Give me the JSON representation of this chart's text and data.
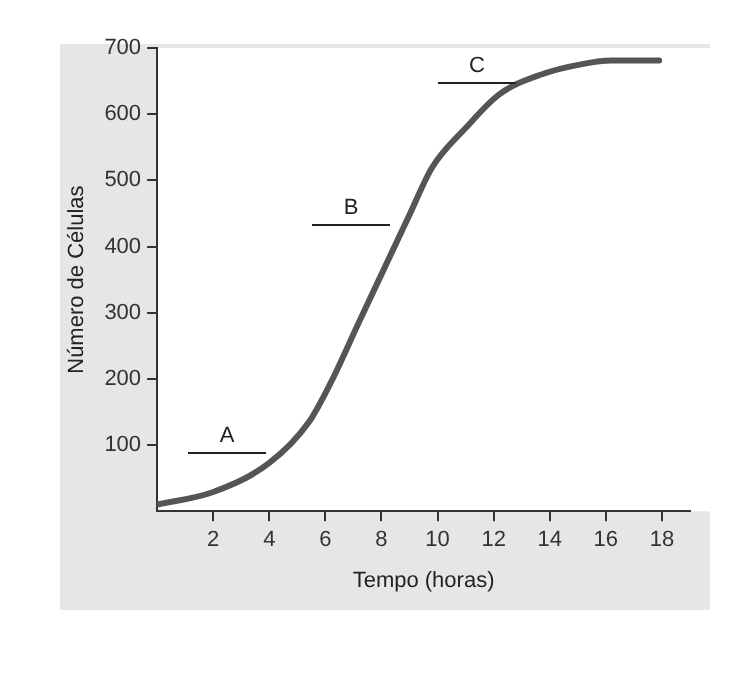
{
  "chart_data": {
    "type": "line",
    "xlabel": "Tempo (horas)",
    "ylabel": "Número de Células",
    "x": [
      0,
      2,
      4,
      5.4,
      6.2,
      7.2,
      8.1,
      9,
      9.8,
      11,
      12.2,
      13.7,
      15.2,
      16.2,
      17.9
    ],
    "series": [
      {
        "color": "#555555",
        "values": [
          10,
          29,
          73,
          134,
          195,
          286,
          367,
          448,
          519,
          579,
          630,
          660,
          676,
          681,
          681
        ]
      }
    ],
    "xlim": [
      0,
      19
    ],
    "xticks": [
      2,
      4,
      6,
      8,
      10,
      12,
      14,
      16,
      18
    ],
    "ylim": [
      0,
      700
    ],
    "yticks": [
      100,
      200,
      300,
      400,
      500,
      600,
      700
    ],
    "annotations": [
      "A",
      "B",
      "C"
    ],
    "grid": false,
    "legend": false,
    "marker": "none",
    "line_style": "solid"
  }
}
